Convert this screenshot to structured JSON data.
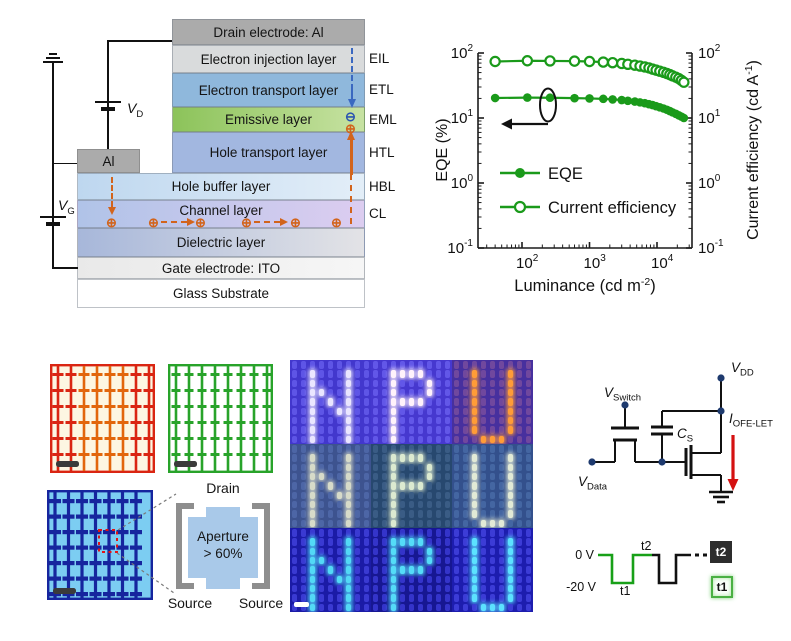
{
  "device_panel": {
    "al_label": "Al",
    "vd_label": {
      "base": "V",
      "sub": "D"
    },
    "vg_label": {
      "base": "V",
      "sub": "G"
    },
    "plus_symbol": "⊕",
    "minus_symbol": "⊖",
    "arrow_orange": "#d2641c",
    "arrow_blue": "#3a68c0",
    "layers": [
      {
        "label": "Drain electrode: Al",
        "tag": "",
        "width": "upper",
        "bg": "#ababab"
      },
      {
        "label": "Electron injection layer",
        "tag": "EIL",
        "width": "upper",
        "bg": "#d9dbdc"
      },
      {
        "label": "Electron transport layer",
        "tag": "ETL",
        "width": "upper",
        "bg": "#8fb8dc"
      },
      {
        "label": "Emissive layer",
        "tag": "EML",
        "width": "upper",
        "bg": "linear-gradient(90deg,#8cc35a,#c7e2a2)"
      },
      {
        "label": "Hole transport layer",
        "tag": "HTL",
        "width": "upper",
        "bg": "#a2b7e0"
      },
      {
        "label": "Hole buffer layer",
        "tag": "HBL",
        "width": "lower",
        "bg": "linear-gradient(90deg,#bed7ef,#e3eef8)"
      },
      {
        "label": "Channel layer",
        "tag": "CL",
        "width": "lower",
        "bg": "linear-gradient(90deg,#b0c3e8,#dccdf0)"
      },
      {
        "label": "Dielectric layer",
        "tag": "",
        "width": "lower",
        "bg": "linear-gradient(90deg,#a7b7da,#e3e3e6)"
      },
      {
        "label": "Gate electrode: ITO",
        "tag": "",
        "width": "lower",
        "bg": "linear-gradient(90deg,#e9e9e9,#f6f6f6)"
      },
      {
        "label": "Glass Substrate",
        "tag": "",
        "width": "lower",
        "bg": "#ffffff"
      }
    ]
  },
  "chart_data": {
    "type": "line",
    "xscale": "log",
    "yscale": "log",
    "xlabel": "Luminance (cd m⁻²)",
    "xlabel_parts": {
      "pre": "Luminance (cd m",
      "sup": "-2",
      "post": ")"
    },
    "ylabel_left": "EQE (%)",
    "ylabel_right": "Current efficiency (cd A⁻¹)",
    "ylabel_right_parts": {
      "pre": "Current efficiency (cd A",
      "sup": "-1",
      "post": ")"
    },
    "xlim": [
      22,
      33000
    ],
    "ylim": [
      0.1,
      100
    ],
    "x_tick_exponents": [
      2,
      3,
      4
    ],
    "y_tick_exponents": [
      -1,
      0,
      1,
      2
    ],
    "series_color": "#1a9a1a",
    "x": [
      40,
      120,
      260,
      600,
      1000,
      1600,
      2200,
      3000,
      3700,
      4700,
      5600,
      6600,
      7600,
      8600,
      9700,
      11000,
      12500,
      14000,
      15500,
      17000,
      19000,
      21000,
      23000,
      25000
    ],
    "series": [
      {
        "name": "EQE",
        "axis": "left",
        "marker": "filled",
        "y": [
          20.3,
          20.6,
          20.5,
          20.2,
          20.0,
          19.7,
          19.3,
          18.9,
          18.4,
          17.9,
          17.4,
          16.9,
          16.3,
          15.8,
          15.2,
          14.6,
          14.0,
          13.4,
          12.8,
          12.2,
          11.6,
          11.0,
          10.5,
          10.0
        ]
      },
      {
        "name": "Current efficiency",
        "axis": "right",
        "marker": "open",
        "y": [
          74,
          76,
          75.5,
          75,
          74,
          72.5,
          71,
          69,
          67,
          65,
          63,
          61,
          59,
          56.5,
          54.5,
          52.5,
          50.5,
          48.5,
          46.5,
          44.5,
          42.5,
          40.5,
          38,
          35.5
        ]
      }
    ],
    "legend": [
      "EQE",
      "Current efficiency"
    ],
    "legend_position": "inside-center-left",
    "annotation": "ellipse with arrow pointing to left axis"
  },
  "arrays_panel": {
    "red": {
      "bg": "#fdf6e2",
      "line": "#da2512",
      "line2": "#e2660c",
      "bar": "#3b3b3b"
    },
    "green": {
      "bg": "#ffffff",
      "line": "#28a32a",
      "bar": "#3b3b3b"
    },
    "blue": {
      "bg": "#7ccdf2",
      "line": "#16259e",
      "bar": "#3b3b3b",
      "dash_box": "#e41414"
    },
    "aperture": {
      "drain_label": "Drain",
      "text_line1": "Aperture",
      "text_line2": "> 60%",
      "source_left": "Source",
      "source_right": "Source",
      "fill": "#a9c9e9",
      "bracket": "#8e8e8e"
    }
  },
  "npu_panel": {
    "letters": [
      "N",
      "P",
      "U"
    ],
    "bitmaps": {
      "N": [
        "10001",
        "10001",
        "11001",
        "10101",
        "10011",
        "10001",
        "10001",
        "10001"
      ],
      "P": [
        "11110",
        "10001",
        "10001",
        "11110",
        "10000",
        "10000",
        "10000",
        "10000"
      ],
      "U": [
        "10001",
        "10001",
        "10001",
        "10001",
        "10001",
        "10001",
        "10001",
        "01110"
      ]
    },
    "rows": [
      {
        "segments": [
          {
            "letter": "N",
            "bg": "#4237cd",
            "off": "#5e55e6",
            "on": "#eae6ff"
          },
          {
            "letter": "P",
            "bg": "#4638cf",
            "off": "#6257e8",
            "on": "#fff2fb"
          },
          {
            "letter": "U",
            "bg": "#47309e",
            "off": "#70489e",
            "on": "#ff9c38"
          }
        ]
      },
      {
        "segments": [
          {
            "letter": "N",
            "bg": "#3d538f",
            "off": "#4d66a6",
            "on": "#d7dbc9"
          },
          {
            "letter": "P",
            "bg": "#27486f",
            "off": "#3a5c85",
            "on": "#dcead0"
          },
          {
            "letter": "U",
            "bg": "#33508c",
            "off": "#4466a2",
            "on": "#e2ead6"
          }
        ]
      },
      {
        "segments": [
          {
            "letter": "N",
            "bg": "#1b1ba6",
            "off": "#3a3ad2",
            "on": "#53d9f6"
          },
          {
            "letter": "P",
            "bg": "#171792",
            "off": "#3434ca",
            "on": "#55dcf8"
          },
          {
            "letter": "U",
            "bg": "#1d1dae",
            "off": "#3c3cd6",
            "on": "#5ce2ff"
          }
        ]
      }
    ],
    "scalebar_color": "#ffffff"
  },
  "circuit_panel": {
    "labels": {
      "vdd": {
        "base": "V",
        "sub": "DD"
      },
      "vswitch": {
        "base": "V",
        "sub": "Switch"
      },
      "cs": {
        "base": "C",
        "sub": "S"
      },
      "vdata": {
        "base": "V",
        "sub": "Data"
      },
      "current": {
        "base": "I",
        "sub": "OFE-LET"
      }
    },
    "arrow_color": "#d41111",
    "node_color": "#1e3a6e"
  },
  "timing_panel": {
    "high_label": "0 V",
    "low_label": "-20 V",
    "t1_label": "t1",
    "t2_label": "t2",
    "t2_box_label": "t2",
    "t1_box_label": "t1",
    "green": "#18a018",
    "black": "#111111"
  }
}
